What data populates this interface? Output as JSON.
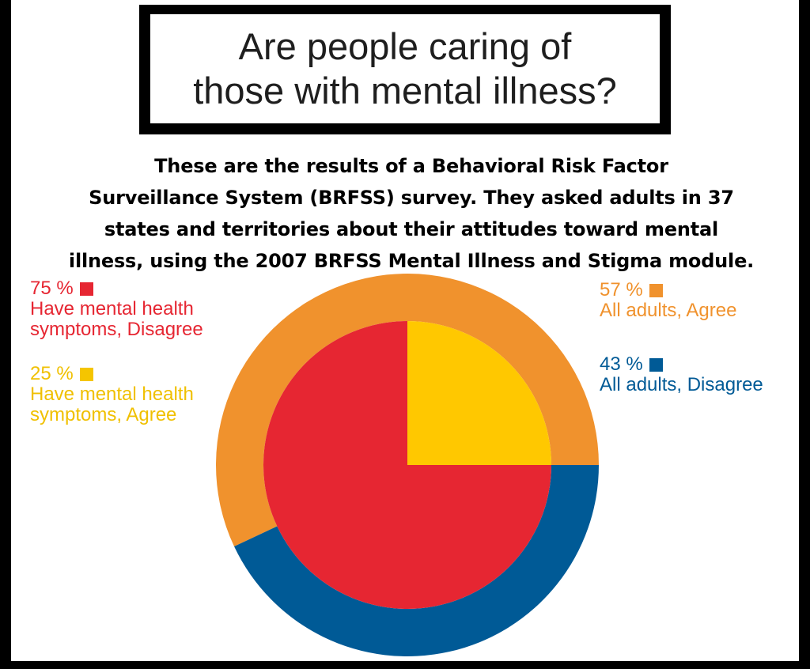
{
  "title": {
    "line1": "Are people caring of",
    "line2": "those with mental illness?"
  },
  "subtitle": {
    "line1": "These are the results of a Behavioral Risk Factor",
    "line2": "Surveillance System (BRFSS) survey. They asked adults in 37",
    "line3": "states and territories about their attitudes toward mental",
    "line4": "illness, using the 2007 BRFSS Mental Illness and Stigma module."
  },
  "legend": {
    "inner_disagree": {
      "percent": "75 %",
      "line1": "Have mental health",
      "line2": "symptoms, Disagree",
      "color": "#e62632"
    },
    "inner_agree": {
      "percent": "25 %",
      "line1": "Have mental health",
      "line2": "symptoms, Agree",
      "color": "#f5c500"
    },
    "outer_agree": {
      "percent": "57 %",
      "line1": "All adults, Agree",
      "color": "#f0922d"
    },
    "outer_disagree": {
      "percent": "43 %",
      "line1": "All adults, Disagree",
      "color": "#005a96"
    }
  },
  "chart_data": {
    "type": "pie",
    "rings": [
      {
        "name": "All adults",
        "slices": [
          {
            "label": "All adults, Agree",
            "value": 57,
            "color": "#f0922d"
          },
          {
            "label": "All adults, Disagree",
            "value": 43,
            "color": "#005a96"
          }
        ]
      },
      {
        "name": "Have mental health symptoms",
        "slices": [
          {
            "label": "Have mental health symptoms, Disagree",
            "value": 75,
            "color": "#e62632"
          },
          {
            "label": "Have mental health symptoms, Agree",
            "value": 25,
            "color": "#ffc800"
          }
        ]
      }
    ],
    "title": "Are people caring of those with mental illness?"
  }
}
